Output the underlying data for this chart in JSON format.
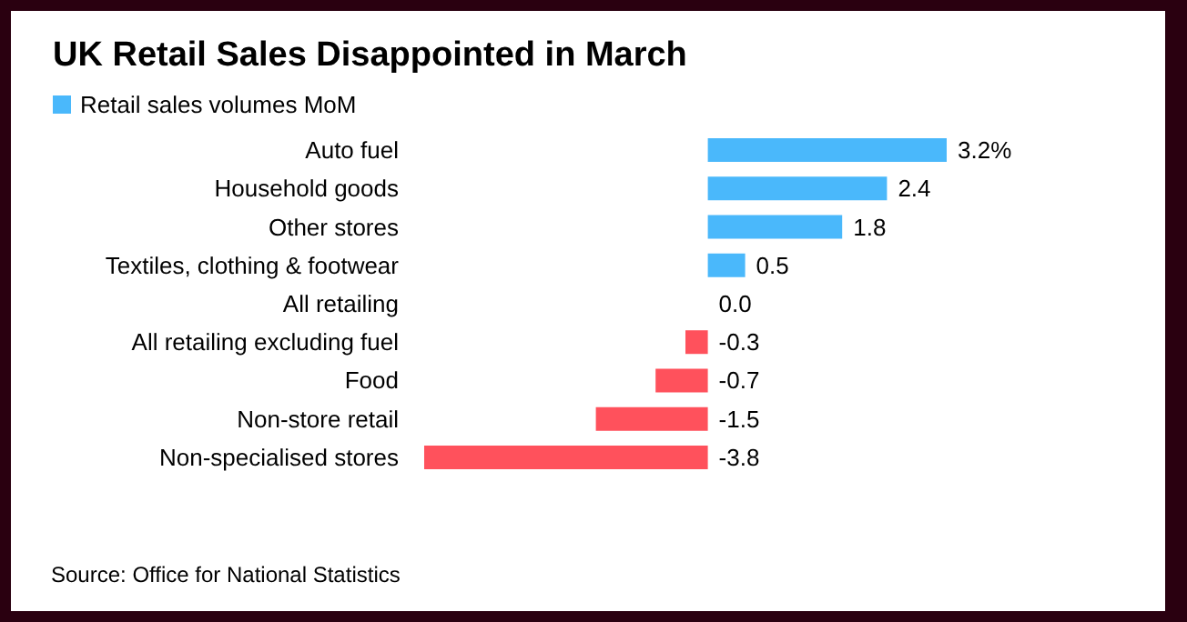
{
  "chart_data": {
    "type": "bar",
    "orientation": "horizontal",
    "title": "UK Retail Sales Disappointed in March",
    "categories": [
      "Auto fuel",
      "Household goods",
      "Other stores",
      "Textiles, clothing & footwear",
      "All retailing",
      "All retailing excluding fuel",
      "Food",
      "Non-store retail",
      "Non-specialised stores"
    ],
    "series": [
      {
        "name": "Retail sales volumes MoM",
        "values": [
          3.2,
          2.4,
          1.8,
          0.5,
          0.0,
          -0.3,
          -0.7,
          -1.5,
          -3.8
        ],
        "value_labels": [
          "3.2%",
          "2.4",
          "1.8",
          "0.5",
          "0.0",
          "-0.3",
          "-0.7",
          "-1.5",
          "-3.8"
        ]
      }
    ],
    "colors": [
      "#4ab8fb",
      "#4ab8fb",
      "#4ab8fb",
      "#4ab8fb",
      "#ff515c",
      "#ff515c",
      "#ff515c",
      "#ff515c",
      "#ff515c"
    ],
    "legend": "top left",
    "annotations": [
      "Source: Office for National Statistics"
    ]
  }
}
